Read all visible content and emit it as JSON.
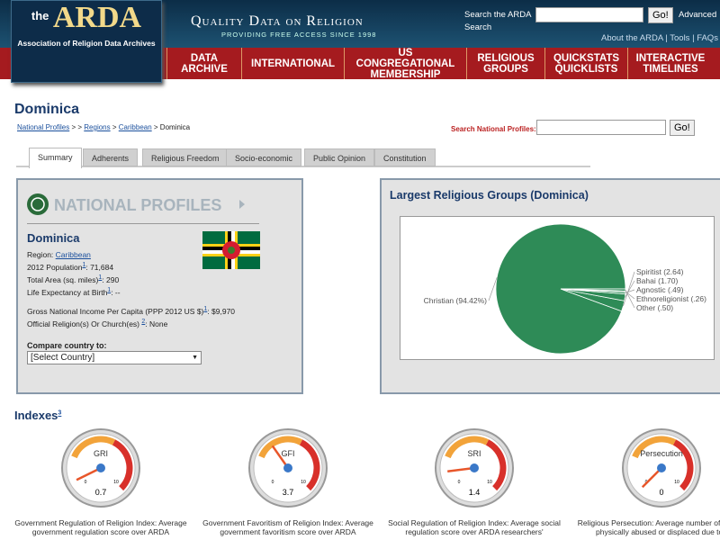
{
  "header": {
    "logo_the": "the",
    "logo_name": "ARDA",
    "logo_sub": "Association of Religion Data Archives",
    "tagline": "Quality Data on Religion",
    "tagline_sub": "PROVIDING FREE ACCESS SINCE 1998",
    "search_label": "Search the ARDA",
    "search_button": "Go!",
    "advanced": "Advanced",
    "search_word": "Search",
    "links": [
      "About the ARDA",
      " | ",
      "Tools",
      " | ",
      "FAQs"
    ]
  },
  "nav": [
    "DATA ARCHIVE",
    "INTERNATIONAL",
    "US CONGREGATIONAL MEMBERSHIP",
    "RELIGIOUS GROUPS",
    "QUICKSTATS QUICKLISTS",
    "INTERACTIVE TIMELINES"
  ],
  "page": {
    "title": "Dominica",
    "breadcrumb": [
      "National Profiles",
      " > > ",
      "Regions",
      " > ",
      "Caribbean",
      " > Dominica"
    ],
    "search_label": "Search National Profiles:",
    "search_button": "Go!"
  },
  "tabs": [
    "Summary",
    "Adherents",
    "Religious Freedom",
    "Socio-economic",
    "Public Opinion",
    "Constitution"
  ],
  "profile": {
    "banner": "NATIONAL PROFILES",
    "country": "Dominica",
    "region_label": "Region: ",
    "region": "Caribbean",
    "facts": [
      {
        "label": "2012 Population",
        "note": "1",
        "value": ": 71,684"
      },
      {
        "label": "Total Area (sq. miles)",
        "note": "1",
        "value": ": 290"
      },
      {
        "label": "Life Expectancy at Birth",
        "note": "1",
        "value": ": --"
      }
    ],
    "facts2": [
      {
        "label": "Gross National Income Per Capita (PPP 2012 US $)",
        "note": "1",
        "value": ": $9,970"
      },
      {
        "label": "Official Religion(s) Or Church(es) ",
        "note": "2",
        "value": ": None"
      }
    ],
    "compare_label": "Compare country to:",
    "compare_select": "[Select Country]"
  },
  "pie": {
    "title": "Largest Religious Groups (Dominica)",
    "labels": [
      "Christian (94.42%)",
      "Spiritist (2.64)",
      "Bahai (1.70)",
      "Agnostic (.49)",
      "Ethnoreligionist (.26)",
      "Other (.50)"
    ],
    "values": [
      94.42,
      2.64,
      1.7,
      0.49,
      0.26,
      0.5
    ],
    "color": "#2e8b57"
  },
  "indexes": {
    "title": "Indexes",
    "note": "3",
    "scale": [
      0,
      10
    ],
    "gauges": [
      {
        "label": "GRI",
        "value": 0.7,
        "caption": "Government Regulation of Religion Index: Average government regulation score over ARDA"
      },
      {
        "label": "GFI",
        "value": 3.7,
        "caption": "Government Favoritism of Religion Index: Average government favoritism score over ARDA"
      },
      {
        "label": "SRI",
        "value": 1.4,
        "caption": "Social Regulation of Religion Index: Average social regulation score over ARDA researchers'"
      },
      {
        "label": "Persecution",
        "value": 0,
        "caption": "Religious Persecution: Average number of people physically abused or displaced due to t"
      }
    ]
  }
}
